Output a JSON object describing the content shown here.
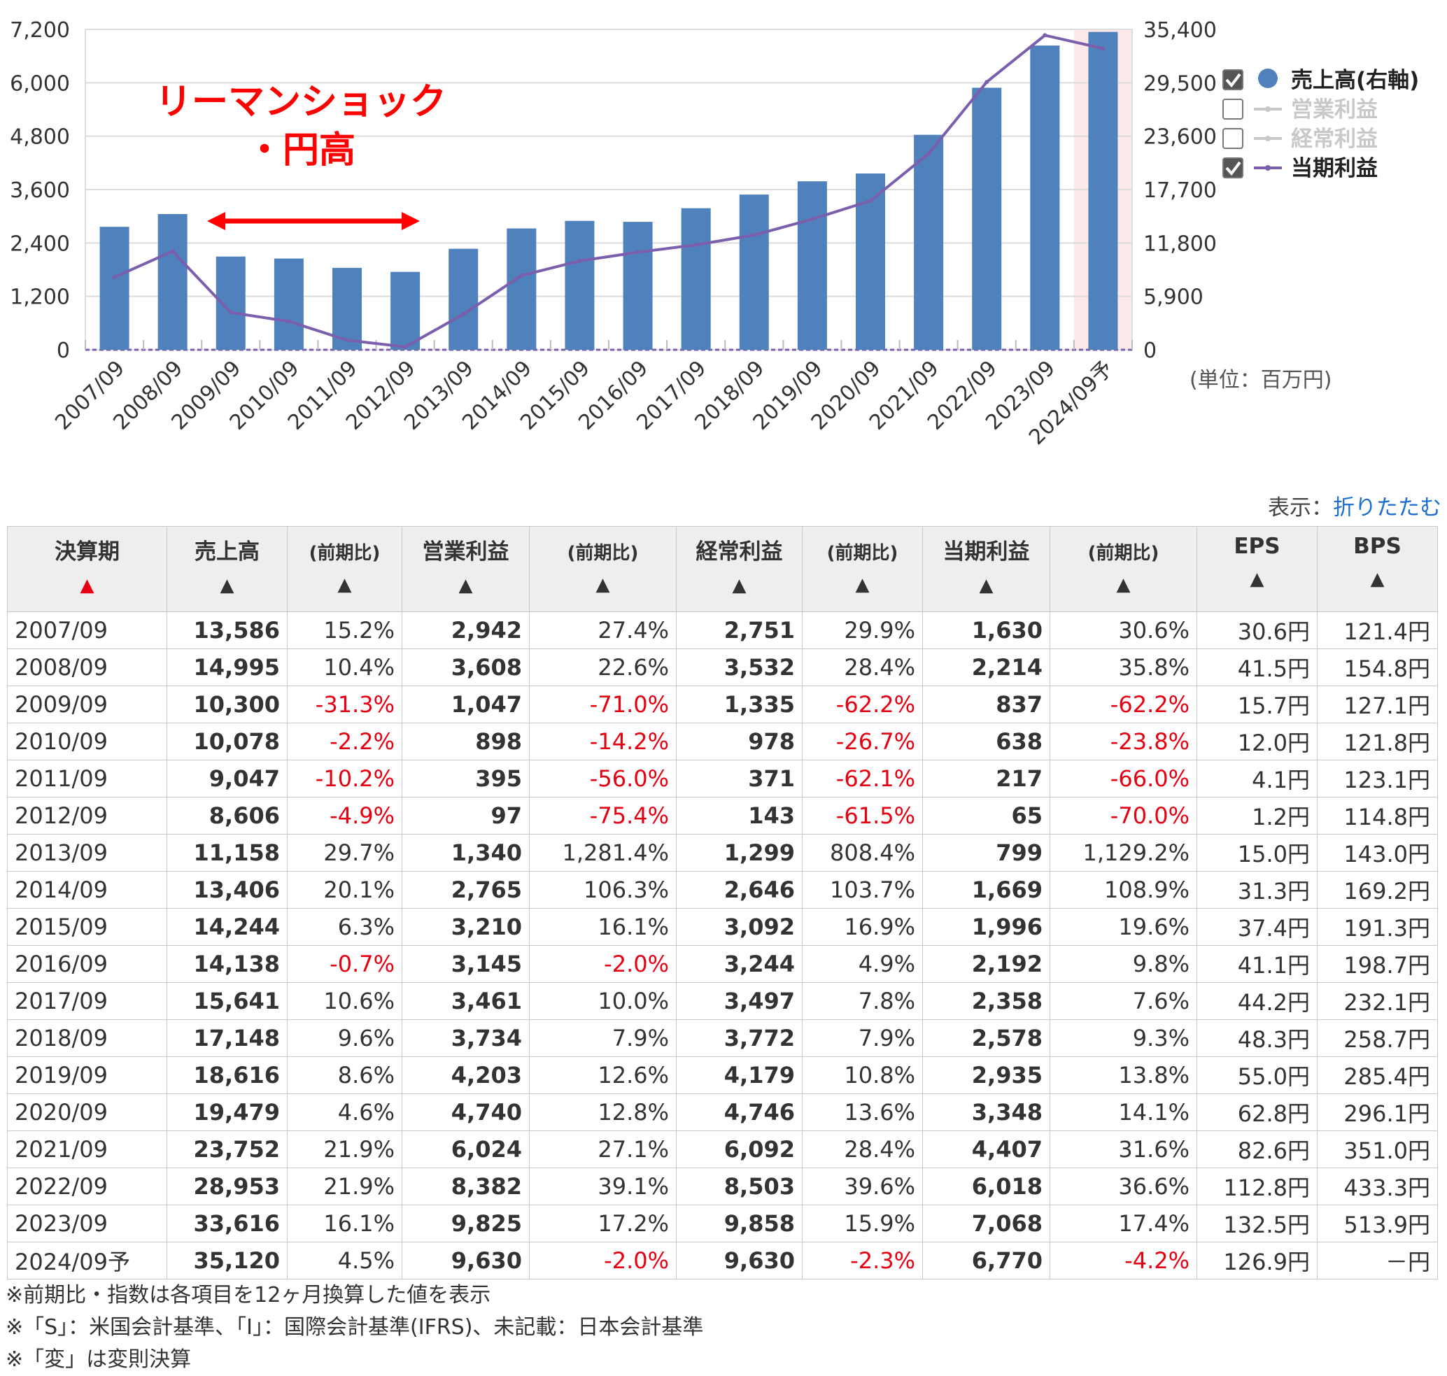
{
  "chart_data": {
    "type": "bar+line",
    "categories": [
      "2007/09",
      "2008/09",
      "2009/09",
      "2010/09",
      "2011/09",
      "2012/09",
      "2013/09",
      "2014/09",
      "2015/09",
      "2016/09",
      "2017/09",
      "2018/09",
      "2019/09",
      "2020/09",
      "2021/09",
      "2022/09",
      "2023/09",
      "2024/09予"
    ],
    "series": [
      {
        "name": "売上高(右軸)",
        "type": "bar",
        "axis": "right",
        "color": "#4f81bd",
        "values": [
          13586,
          14995,
          10300,
          10078,
          9047,
          8606,
          11158,
          13406,
          14244,
          14138,
          15641,
          17148,
          18616,
          19479,
          23752,
          28953,
          33616,
          35120
        ]
      },
      {
        "name": "当期利益",
        "type": "line",
        "axis": "left",
        "color": "#7b5fad",
        "values": [
          1630,
          2214,
          837,
          638,
          217,
          65,
          799,
          1669,
          1996,
          2192,
          2358,
          2578,
          2935,
          3348,
          4407,
          6018,
          7068,
          6770
        ]
      }
    ],
    "left_axis": {
      "ylim": [
        0,
        7200
      ],
      "ticks": [
        "7,200",
        "6,000",
        "4,800",
        "3,600",
        "2,400",
        "1,200",
        "0"
      ]
    },
    "right_axis": {
      "ylim": [
        0,
        35400
      ],
      "ticks": [
        "35,400",
        "29,500",
        "23,600",
        "17,700",
        "11,800",
        "5,900",
        "0"
      ]
    },
    "legend": {
      "position": "right",
      "items": [
        {
          "label": "売上高(右軸)",
          "checked": true,
          "marker": "circle",
          "color": "#4f81bd"
        },
        {
          "label": "営業利益",
          "checked": false,
          "marker": "line",
          "color": "#c8c8c8"
        },
        {
          "label": "経常利益",
          "checked": false,
          "marker": "line",
          "color": "#c8c8c8"
        },
        {
          "label": "当期利益",
          "checked": true,
          "marker": "line",
          "color": "#7b5fad"
        }
      ]
    },
    "unit": "(単位：百万円)",
    "annotation": {
      "text_line1": "リーマンショック",
      "text_line2": "・円高",
      "color": "#ff0000",
      "from": "2009/09",
      "to": "2012/09"
    },
    "forecast_highlight": "2024/09予",
    "grid": true
  },
  "table_controls": {
    "display_label": "表示：",
    "collapse_link": "折りたたむ"
  },
  "table": {
    "headers": [
      {
        "label": "決算期",
        "sort": "▲",
        "active": true
      },
      {
        "label": "売上高",
        "sort": "▲"
      },
      {
        "label": "(前期比)",
        "sort": "▲",
        "small": true
      },
      {
        "label": "営業利益",
        "sort": "▲"
      },
      {
        "label": "(前期比)",
        "sort": "▲",
        "small": true
      },
      {
        "label": "経常利益",
        "sort": "▲"
      },
      {
        "label": "(前期比)",
        "sort": "▲",
        "small": true
      },
      {
        "label": "当期利益",
        "sort": "▲"
      },
      {
        "label": "(前期比)",
        "sort": "▲",
        "small": true
      },
      {
        "label": "EPS",
        "sort": "▲"
      },
      {
        "label": "BPS",
        "sort": "▲"
      }
    ],
    "rows": [
      [
        "2007/09",
        "13,586",
        "15.2%",
        "2,942",
        "27.4%",
        "2,751",
        "29.9%",
        "1,630",
        "30.6%",
        "30.6円",
        "121.4円"
      ],
      [
        "2008/09",
        "14,995",
        "10.4%",
        "3,608",
        "22.6%",
        "3,532",
        "28.4%",
        "2,214",
        "35.8%",
        "41.5円",
        "154.8円"
      ],
      [
        "2009/09",
        "10,300",
        "-31.3%",
        "1,047",
        "-71.0%",
        "1,335",
        "-62.2%",
        "837",
        "-62.2%",
        "15.7円",
        "127.1円"
      ],
      [
        "2010/09",
        "10,078",
        "-2.2%",
        "898",
        "-14.2%",
        "978",
        "-26.7%",
        "638",
        "-23.8%",
        "12.0円",
        "121.8円"
      ],
      [
        "2011/09",
        "9,047",
        "-10.2%",
        "395",
        "-56.0%",
        "371",
        "-62.1%",
        "217",
        "-66.0%",
        "4.1円",
        "123.1円"
      ],
      [
        "2012/09",
        "8,606",
        "-4.9%",
        "97",
        "-75.4%",
        "143",
        "-61.5%",
        "65",
        "-70.0%",
        "1.2円",
        "114.8円"
      ],
      [
        "2013/09",
        "11,158",
        "29.7%",
        "1,340",
        "1,281.4%",
        "1,299",
        "808.4%",
        "799",
        "1,129.2%",
        "15.0円",
        "143.0円"
      ],
      [
        "2014/09",
        "13,406",
        "20.1%",
        "2,765",
        "106.3%",
        "2,646",
        "103.7%",
        "1,669",
        "108.9%",
        "31.3円",
        "169.2円"
      ],
      [
        "2015/09",
        "14,244",
        "6.3%",
        "3,210",
        "16.1%",
        "3,092",
        "16.9%",
        "1,996",
        "19.6%",
        "37.4円",
        "191.3円"
      ],
      [
        "2016/09",
        "14,138",
        "-0.7%",
        "3,145",
        "-2.0%",
        "3,244",
        "4.9%",
        "2,192",
        "9.8%",
        "41.1円",
        "198.7円"
      ],
      [
        "2017/09",
        "15,641",
        "10.6%",
        "3,461",
        "10.0%",
        "3,497",
        "7.8%",
        "2,358",
        "7.6%",
        "44.2円",
        "232.1円"
      ],
      [
        "2018/09",
        "17,148",
        "9.6%",
        "3,734",
        "7.9%",
        "3,772",
        "7.9%",
        "2,578",
        "9.3%",
        "48.3円",
        "258.7円"
      ],
      [
        "2019/09",
        "18,616",
        "8.6%",
        "4,203",
        "12.6%",
        "4,179",
        "10.8%",
        "2,935",
        "13.8%",
        "55.0円",
        "285.4円"
      ],
      [
        "2020/09",
        "19,479",
        "4.6%",
        "4,740",
        "12.8%",
        "4,746",
        "13.6%",
        "3,348",
        "14.1%",
        "62.8円",
        "296.1円"
      ],
      [
        "2021/09",
        "23,752",
        "21.9%",
        "6,024",
        "27.1%",
        "6,092",
        "28.4%",
        "4,407",
        "31.6%",
        "82.6円",
        "351.0円"
      ],
      [
        "2022/09",
        "28,953",
        "21.9%",
        "8,382",
        "39.1%",
        "8,503",
        "39.6%",
        "6,018",
        "36.6%",
        "112.8円",
        "433.3円"
      ],
      [
        "2023/09",
        "33,616",
        "16.1%",
        "9,825",
        "17.2%",
        "9,858",
        "15.9%",
        "7,068",
        "17.4%",
        "132.5円",
        "513.9円"
      ],
      [
        "2024/09予",
        "35,120",
        "4.5%",
        "9,630",
        "-2.0%",
        "9,630",
        "-2.3%",
        "6,770",
        "-4.2%",
        "126.9円",
        "－円"
      ]
    ]
  },
  "notes": [
    "※前期比・指数は各項目を12ヶ月換算した値を表示",
    "※「S」：米国会計基準、「I」：国際会計基準(IFRS)、未記載：日本会計基準",
    "※「変」は変則決算"
  ]
}
